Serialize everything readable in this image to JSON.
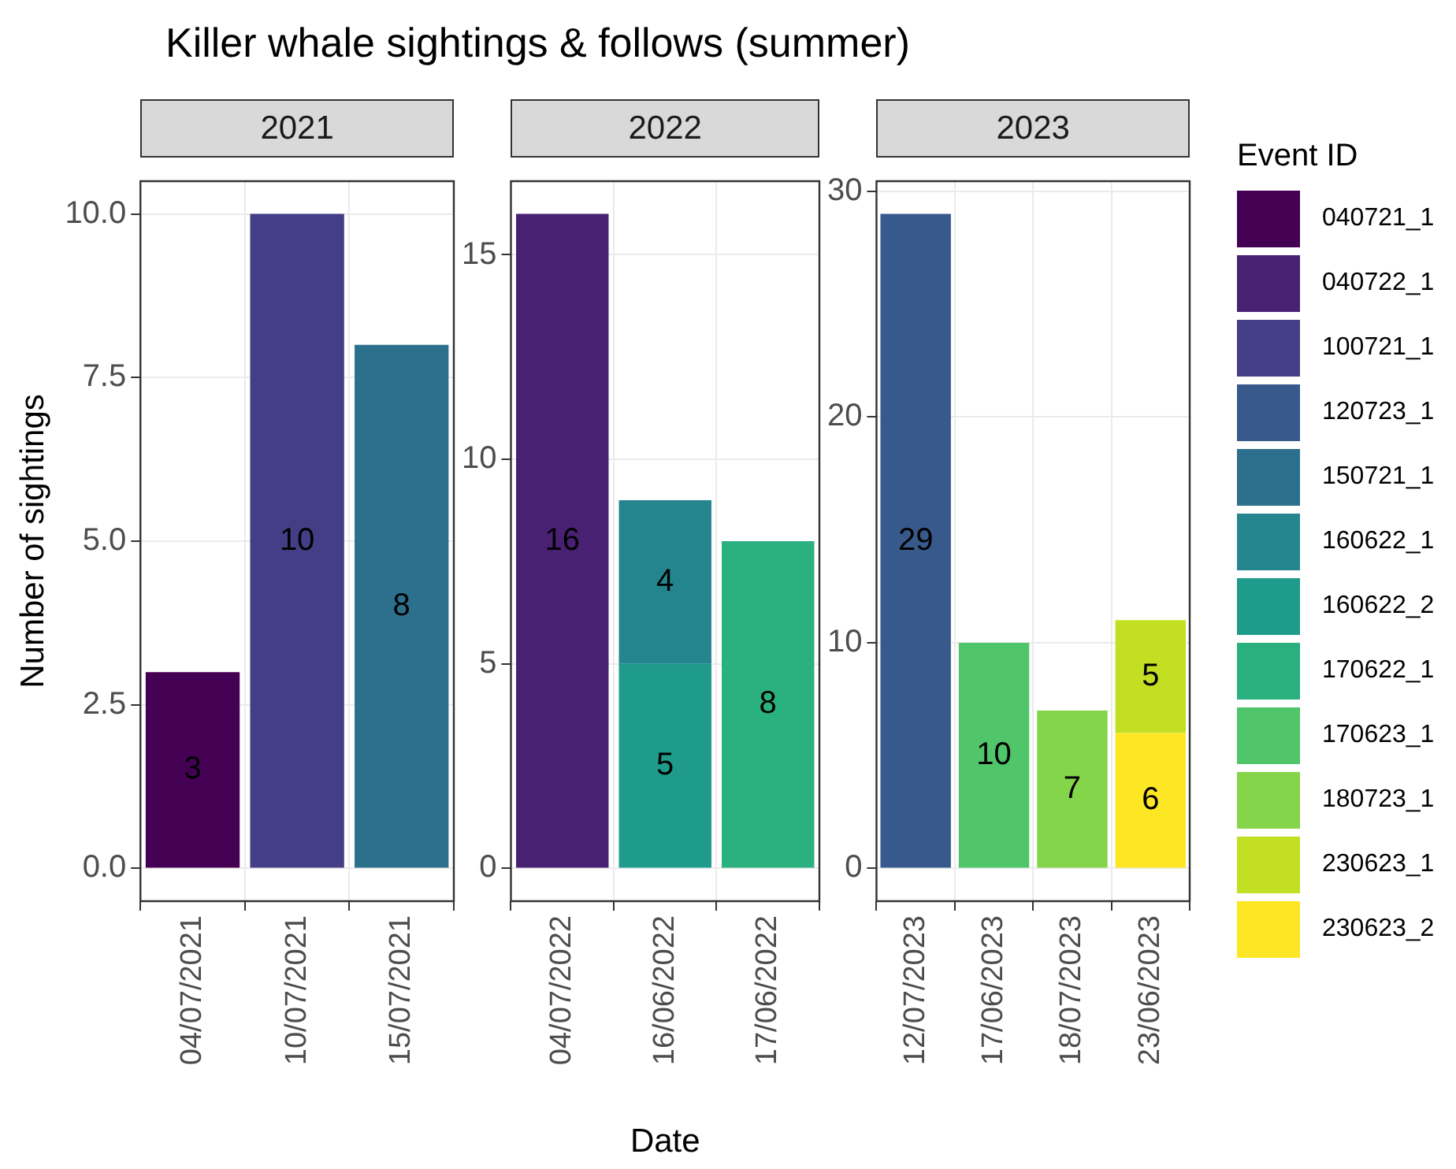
{
  "chart_data": [
    {
      "type": "bar",
      "title": "Killer whale sightings & follows (summer)",
      "subtitle": "2021",
      "legend": "right",
      "ylabel": "Number of sightings",
      "stacked": true,
      "grid": true,
      "data_labels": true,
      "categories": [
        "04/07/2021",
        "10/07/2021",
        "15/07/2021"
      ],
      "ylim": [
        -0.5,
        10.5
      ],
      "yticks": [
        {
          "value": 0,
          "label": "0.0"
        },
        {
          "value": 2.5,
          "label": "2.5"
        },
        {
          "value": 5,
          "label": "5.0"
        },
        {
          "value": 7.5,
          "label": "7.5"
        },
        {
          "value": 10,
          "label": "10.0"
        }
      ],
      "series": [
        {
          "name": "040721_1",
          "color": "#440154",
          "values": [
            3,
            null,
            null
          ]
        },
        {
          "name": "100721_1",
          "color": "#433e85",
          "values": [
            null,
            10,
            null
          ]
        },
        {
          "name": "150721_1",
          "color": "#2d708e",
          "values": [
            null,
            null,
            8
          ]
        }
      ]
    },
    {
      "type": "bar",
      "subtitle": "2022",
      "xlabel": "Date",
      "legend": "right",
      "stacked": true,
      "grid": true,
      "data_labels": true,
      "categories": [
        "04/07/2022",
        "16/06/2022",
        "17/06/2022"
      ],
      "ylim": [
        -0.8,
        16.8
      ],
      "yticks": [
        0,
        5,
        10,
        15
      ],
      "series": [
        {
          "name": "040722_1",
          "color": "#482173",
          "values": [
            16,
            null,
            null
          ]
        },
        {
          "name": "160622_2",
          "color": "#1e9b8a",
          "values": [
            null,
            5,
            null
          ]
        },
        {
          "name": "160622_1",
          "color": "#25858e",
          "values": [
            null,
            4,
            null
          ]
        },
        {
          "name": "170622_1",
          "color": "#2bb07f",
          "values": [
            null,
            null,
            8
          ]
        }
      ]
    },
    {
      "type": "bar",
      "subtitle": "2023",
      "legend": "right",
      "legend_title": "Event ID",
      "stacked": true,
      "grid": true,
      "data_labels": true,
      "categories": [
        "12/07/2023",
        "17/06/2023",
        "18/07/2023",
        "23/06/2023"
      ],
      "ylim": [
        -1.45,
        30.45
      ],
      "yticks": [
        0,
        10,
        20,
        30
      ],
      "series": [
        {
          "name": "120723_1",
          "color": "#38598c",
          "values": [
            29,
            null,
            null,
            null
          ]
        },
        {
          "name": "170623_1",
          "color": "#51c56a",
          "values": [
            null,
            10,
            null,
            null
          ]
        },
        {
          "name": "180723_1",
          "color": "#85d54a",
          "values": [
            null,
            null,
            7,
            null
          ]
        },
        {
          "name": "230623_2",
          "color": "#fde725",
          "values": [
            null,
            null,
            null,
            6
          ]
        },
        {
          "name": "230623_1",
          "color": "#c2df23",
          "values": [
            null,
            null,
            null,
            5
          ]
        }
      ]
    }
  ]
}
